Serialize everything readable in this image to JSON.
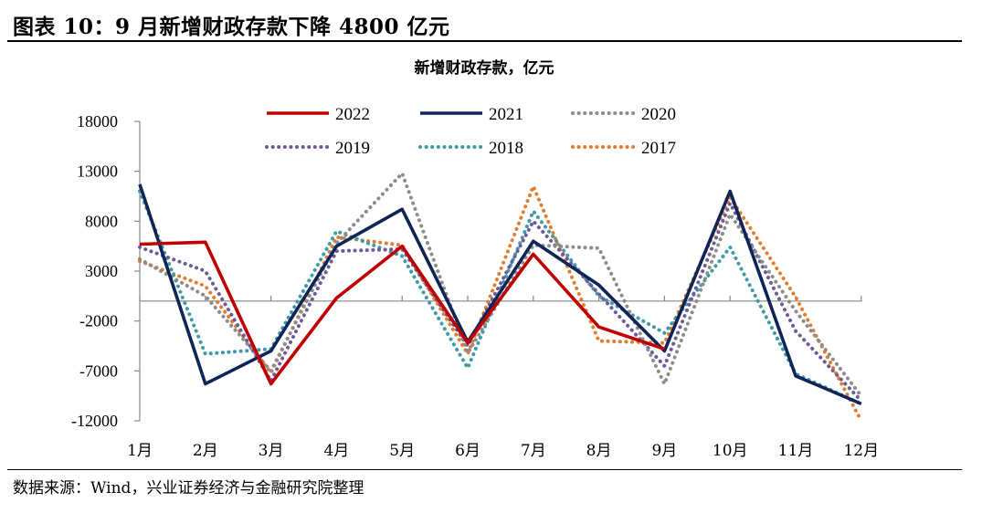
{
  "header": {
    "title": "图表 10：9 月新增财政存款下降 4800 亿元"
  },
  "source": {
    "text": "数据来源：Wind，兴业证券经济与金融研究院整理"
  },
  "chart_data": {
    "type": "line",
    "title": "新增财政存款，亿元",
    "xlabel": "",
    "ylabel": "",
    "categories": [
      "1月",
      "2月",
      "3月",
      "4月",
      "5月",
      "6月",
      "7月",
      "8月",
      "9月",
      "10月",
      "11月",
      "12月"
    ],
    "ylim": [
      -12000,
      18000
    ],
    "yticks": [
      18000,
      13000,
      8000,
      3000,
      -2000,
      -7000,
      -12000
    ],
    "ytick_labels": [
      "18000",
      "13000",
      "8000",
      "3000",
      "-2000",
      "-7000",
      "-12000"
    ],
    "grid": false,
    "legend": "top",
    "series": [
      {
        "name": "2022",
        "color": "#C00000",
        "style": "solid",
        "values": [
          5700,
          5900,
          -8300,
          300,
          5500,
          -4200,
          4700,
          -2600,
          -4800,
          null,
          null,
          null
        ]
      },
      {
        "name": "2021",
        "color": "#0E2557",
        "style": "solid",
        "values": [
          11700,
          -8300,
          -5000,
          5500,
          9200,
          -4100,
          6000,
          1600,
          -5000,
          11000,
          -7500,
          -10300
        ]
      },
      {
        "name": "2020",
        "color": "#8C8C8C",
        "style": "dotted",
        "values": [
          4200,
          500,
          -7000,
          5800,
          12800,
          -5200,
          5600,
          5300,
          -8300,
          8700,
          -1000,
          -9500
        ]
      },
      {
        "name": "2019",
        "color": "#6E5A96",
        "style": "dotted",
        "values": [
          5400,
          3000,
          -8000,
          5000,
          5200,
          -4500,
          8000,
          700,
          -6500,
          9800,
          -3000,
          -10000
        ]
      },
      {
        "name": "2018",
        "color": "#3E9AA8",
        "style": "dotted",
        "values": [
          11000,
          -5300,
          -4800,
          7000,
          4500,
          -6700,
          9000,
          500,
          -3200,
          5400,
          -7300,
          -10300
        ]
      },
      {
        "name": "2017",
        "color": "#E27C30",
        "style": "dotted",
        "values": [
          4000,
          1500,
          -7200,
          6400,
          5600,
          -5300,
          11500,
          -4000,
          -4200,
          10400,
          400,
          -12000
        ]
      }
    ]
  }
}
